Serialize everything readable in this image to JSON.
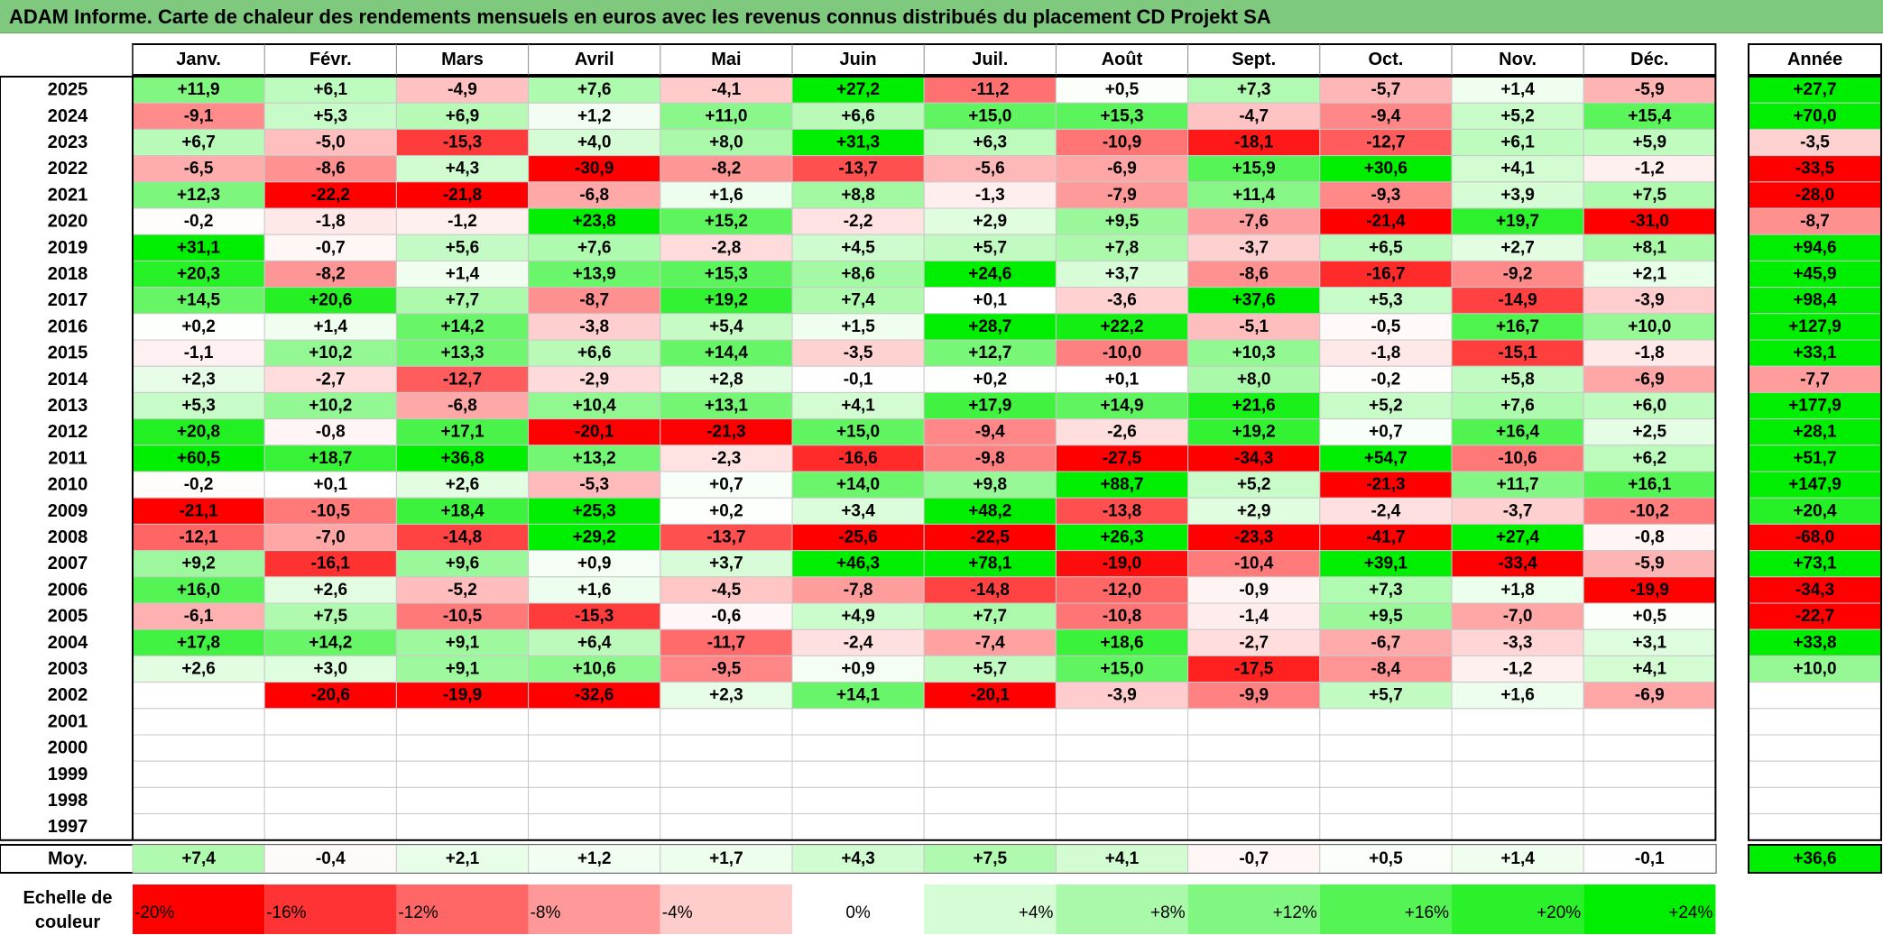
{
  "title": "ADAM Informe. Carte de chaleur des rendements mensuels en euros avec les revenus connus distribués du placement CD Projekt SA",
  "chart_data": {
    "type": "heatmap",
    "title": "ADAM Informe. Carte de chaleur des rendements mensuels en euros avec les revenus connus distribués du placement CD Projekt SA",
    "columns": [
      "Janv.",
      "Févr.",
      "Mars",
      "Avril",
      "Mai",
      "Juin",
      "Juil.",
      "Août",
      "Sept.",
      "Oct.",
      "Nov.",
      "Déc."
    ],
    "year_column_label": "Année",
    "rows": [
      {
        "year": "2025",
        "values": [
          "+11,9",
          "+6,1",
          "-4,9",
          "+7,6",
          "-4,1",
          "+27,2",
          "-11,2",
          "+0,5",
          "+7,3",
          "-5,7",
          "+1,4",
          "-5,9"
        ],
        "annual": "+27,7"
      },
      {
        "year": "2024",
        "values": [
          "-9,1",
          "+5,3",
          "+6,9",
          "+1,2",
          "+11,0",
          "+6,6",
          "+15,0",
          "+15,3",
          "-4,7",
          "-9,4",
          "+5,2",
          "+15,4"
        ],
        "annual": "+70,0"
      },
      {
        "year": "2023",
        "values": [
          "+6,7",
          "-5,0",
          "-15,3",
          "+4,0",
          "+8,0",
          "+31,3",
          "+6,3",
          "-10,9",
          "-18,1",
          "-12,7",
          "+6,1",
          "+5,9"
        ],
        "annual": "-3,5"
      },
      {
        "year": "2022",
        "values": [
          "-6,5",
          "-8,6",
          "+4,3",
          "-30,9",
          "-8,2",
          "-13,7",
          "-5,6",
          "-6,9",
          "+15,9",
          "+30,6",
          "+4,1",
          "-1,2"
        ],
        "annual": "-33,5"
      },
      {
        "year": "2021",
        "values": [
          "+12,3",
          "-22,2",
          "-21,8",
          "-6,8",
          "+1,6",
          "+8,8",
          "-1,3",
          "-7,9",
          "+11,4",
          "-9,3",
          "+3,9",
          "+7,5"
        ],
        "annual": "-28,0"
      },
      {
        "year": "2020",
        "values": [
          "-0,2",
          "-1,8",
          "-1,2",
          "+23,8",
          "+15,2",
          "-2,2",
          "+2,9",
          "+9,5",
          "-7,6",
          "-21,4",
          "+19,7",
          "-31,0"
        ],
        "annual": "-8,7"
      },
      {
        "year": "2019",
        "values": [
          "+31,1",
          "-0,7",
          "+5,6",
          "+7,6",
          "-2,8",
          "+4,5",
          "+5,7",
          "+7,8",
          "-3,7",
          "+6,5",
          "+2,7",
          "+8,1"
        ],
        "annual": "+94,6"
      },
      {
        "year": "2018",
        "values": [
          "+20,3",
          "-8,2",
          "+1,4",
          "+13,9",
          "+15,3",
          "+8,6",
          "+24,6",
          "+3,7",
          "-8,6",
          "-16,7",
          "-9,2",
          "+2,1"
        ],
        "annual": "+45,9"
      },
      {
        "year": "2017",
        "values": [
          "+14,5",
          "+20,6",
          "+7,7",
          "-8,7",
          "+19,2",
          "+7,4",
          "+0,1",
          "-3,6",
          "+37,6",
          "+5,3",
          "-14,9",
          "-3,9"
        ],
        "annual": "+98,4"
      },
      {
        "year": "2016",
        "values": [
          "+0,2",
          "+1,4",
          "+14,2",
          "-3,8",
          "+5,4",
          "+1,5",
          "+28,7",
          "+22,2",
          "-5,1",
          "-0,5",
          "+16,7",
          "+10,0"
        ],
        "annual": "+127,9"
      },
      {
        "year": "2015",
        "values": [
          "-1,1",
          "+10,2",
          "+13,3",
          "+6,6",
          "+14,4",
          "-3,5",
          "+12,7",
          "-10,0",
          "+10,3",
          "-1,8",
          "-15,1",
          "-1,8"
        ],
        "annual": "+33,1"
      },
      {
        "year": "2014",
        "values": [
          "+2,3",
          "-2,7",
          "-12,7",
          "-2,9",
          "+2,8",
          "-0,1",
          "+0,2",
          "+0,1",
          "+8,0",
          "-0,2",
          "+5,8",
          "-6,9"
        ],
        "annual": "-7,7"
      },
      {
        "year": "2013",
        "values": [
          "+5,3",
          "+10,2",
          "-6,8",
          "+10,4",
          "+13,1",
          "+4,1",
          "+17,9",
          "+14,9",
          "+21,6",
          "+5,2",
          "+7,6",
          "+6,0"
        ],
        "annual": "+177,9"
      },
      {
        "year": "2012",
        "values": [
          "+20,8",
          "-0,8",
          "+17,1",
          "-20,1",
          "-21,3",
          "+15,0",
          "-9,4",
          "-2,6",
          "+19,2",
          "+0,7",
          "+16,4",
          "+2,5"
        ],
        "annual": "+28,1"
      },
      {
        "year": "2011",
        "values": [
          "+60,5",
          "+18,7",
          "+36,8",
          "+13,2",
          "-2,3",
          "-16,6",
          "-9,8",
          "-27,5",
          "-34,3",
          "+54,7",
          "-10,6",
          "+6,2"
        ],
        "annual": "+51,7"
      },
      {
        "year": "2010",
        "values": [
          "-0,2",
          "+0,1",
          "+2,6",
          "-5,3",
          "+0,7",
          "+14,0",
          "+9,8",
          "+88,7",
          "+5,2",
          "-21,3",
          "+11,7",
          "+16,1"
        ],
        "annual": "+147,9"
      },
      {
        "year": "2009",
        "values": [
          "-21,1",
          "-10,5",
          "+18,4",
          "+25,3",
          "+0,2",
          "+3,4",
          "+48,2",
          "-13,8",
          "+2,9",
          "-2,4",
          "-3,7",
          "-10,2"
        ],
        "annual": "+20,4"
      },
      {
        "year": "2008",
        "values": [
          "-12,1",
          "-7,0",
          "-14,8",
          "+29,2",
          "-13,7",
          "-25,6",
          "-22,5",
          "+26,3",
          "-23,3",
          "-41,7",
          "+27,4",
          "-0,8"
        ],
        "annual": "-68,0"
      },
      {
        "year": "2007",
        "values": [
          "+9,2",
          "-16,1",
          "+9,6",
          "+0,9",
          "+3,7",
          "+46,3",
          "+78,1",
          "-19,0",
          "-10,4",
          "+39,1",
          "-33,4",
          "-5,9"
        ],
        "annual": "+73,1"
      },
      {
        "year": "2006",
        "values": [
          "+16,0",
          "+2,6",
          "-5,2",
          "+1,6",
          "-4,5",
          "-7,8",
          "-14,8",
          "-12,0",
          "-0,9",
          "+7,3",
          "+1,8",
          "-19,9"
        ],
        "annual": "-34,3"
      },
      {
        "year": "2005",
        "values": [
          "-6,1",
          "+7,5",
          "-10,5",
          "-15,3",
          "-0,6",
          "+4,9",
          "+7,7",
          "-10,8",
          "-1,4",
          "+9,5",
          "-7,0",
          "+0,5"
        ],
        "annual": "-22,7"
      },
      {
        "year": "2004",
        "values": [
          "+17,8",
          "+14,2",
          "+9,1",
          "+6,4",
          "-11,7",
          "-2,4",
          "-7,4",
          "+18,6",
          "-2,7",
          "-6,7",
          "-3,3",
          "+3,1"
        ],
        "annual": "+33,8"
      },
      {
        "year": "2003",
        "values": [
          "+2,6",
          "+3,0",
          "+9,1",
          "+10,6",
          "-9,5",
          "+0,9",
          "+5,7",
          "+15,0",
          "-17,5",
          "-8,4",
          "-1,2",
          "+4,1"
        ],
        "annual": "+10,0"
      },
      {
        "year": "2002",
        "values": [
          "",
          "-20,6",
          "-19,9",
          "-32,6",
          "+2,3",
          "+14,1",
          "-20,1",
          "-3,9",
          "-9,9",
          "+5,7",
          "+1,6",
          "-6,9"
        ],
        "annual": ""
      },
      {
        "year": "2001",
        "values": [
          "",
          "",
          "",
          "",
          "",
          "",
          "",
          "",
          "",
          "",
          "",
          ""
        ],
        "annual": ""
      },
      {
        "year": "2000",
        "values": [
          "",
          "",
          "",
          "",
          "",
          "",
          "",
          "",
          "",
          "",
          "",
          ""
        ],
        "annual": ""
      },
      {
        "year": "1999",
        "values": [
          "",
          "",
          "",
          "",
          "",
          "",
          "",
          "",
          "",
          "",
          "",
          ""
        ],
        "annual": ""
      },
      {
        "year": "1998",
        "values": [
          "",
          "",
          "",
          "",
          "",
          "",
          "",
          "",
          "",
          "",
          "",
          ""
        ],
        "annual": ""
      },
      {
        "year": "1997",
        "values": [
          "",
          "",
          "",
          "",
          "",
          "",
          "",
          "",
          "",
          "",
          "",
          ""
        ],
        "annual": ""
      }
    ],
    "average": {
      "label": "Moy.",
      "values": [
        "+7,4",
        "-0,4",
        "+2,1",
        "+1,2",
        "+1,7",
        "+4,3",
        "+7,5",
        "+4,1",
        "-0,7",
        "+0,5",
        "+1,4",
        "-0,1"
      ],
      "annual": "+36,6"
    },
    "color_scale": {
      "label_line1": "Echelle de",
      "label_line2": "couleur",
      "stops": [
        "-20%",
        "-16%",
        "-12%",
        "-8%",
        "-4%",
        "0%",
        "+4%",
        "+8%",
        "+12%",
        "+16%",
        "+20%",
        "+24%"
      ],
      "stop_values": [
        -20,
        -16,
        -12,
        -8,
        -4,
        0,
        4,
        8,
        12,
        16,
        20,
        24
      ]
    },
    "colors": {
      "negative": "#ff0000",
      "positive": "#00ee00",
      "neutral": "#ffffff",
      "title_bar": "#7fc97f"
    }
  }
}
